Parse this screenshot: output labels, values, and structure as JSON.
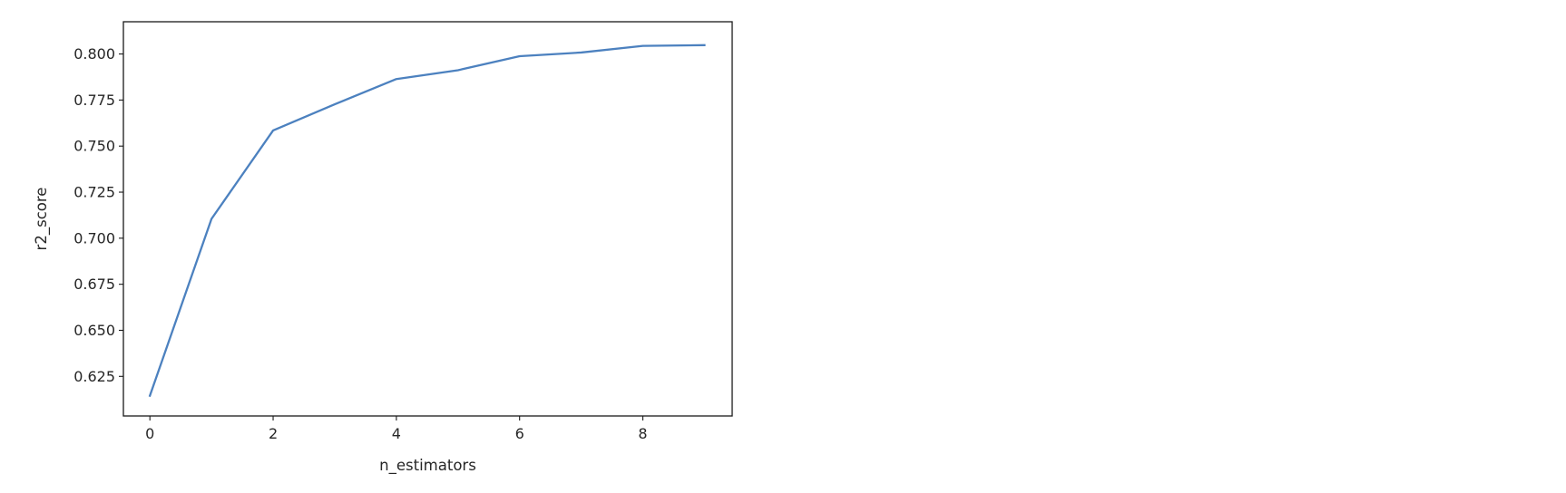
{
  "chart_data": {
    "type": "line",
    "title": "",
    "xlabel": "n_estimators",
    "ylabel": "r2_score",
    "xlim": [
      -0.43,
      9.45
    ],
    "ylim": [
      0.6035,
      0.8175
    ],
    "x_ticks": [
      0,
      2,
      4,
      6,
      8
    ],
    "x_tick_labels": [
      "0",
      "2",
      "4",
      "6",
      "8"
    ],
    "y_ticks": [
      0.625,
      0.65,
      0.675,
      0.7,
      0.725,
      0.75,
      0.775,
      0.8
    ],
    "y_tick_labels": [
      "0.625",
      "0.650",
      "0.675",
      "0.700",
      "0.725",
      "0.750",
      "0.775",
      "0.800"
    ],
    "grid": false,
    "legend": "none",
    "series": [
      {
        "color": "#4c81bf",
        "x": [
          0,
          1,
          2,
          3,
          4,
          5,
          6,
          7,
          8,
          9
        ],
        "y": [
          0.6145,
          0.7105,
          0.7585,
          0.7727,
          0.7864,
          0.7912,
          0.7988,
          0.8008,
          0.8044,
          0.8048
        ]
      }
    ]
  }
}
